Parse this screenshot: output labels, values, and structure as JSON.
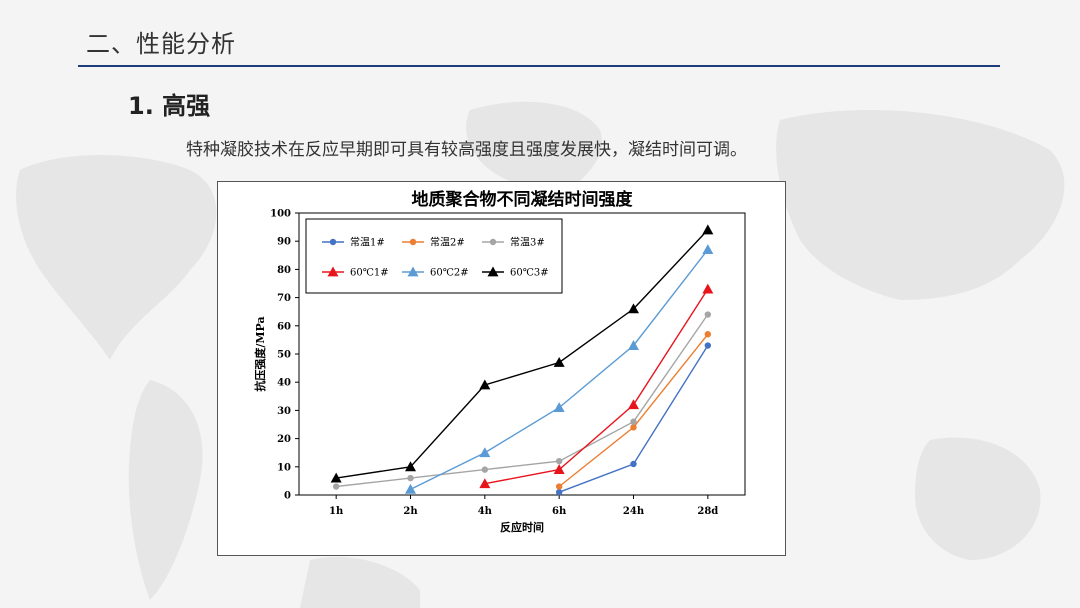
{
  "header": {
    "section_title": "二、性能分析",
    "subtitle": "1. 高强",
    "description": "特种凝胶技术在反应早期即可具有较高强度且强度发展快，凝结时间可调。"
  },
  "colors": {
    "accent_rule": "#1f3d7a"
  },
  "chart_data": {
    "type": "line",
    "title": "地质聚合物不同凝结时间强度",
    "xlabel": "反应时间",
    "ylabel": "抗压强度/MPa",
    "categories": [
      "1h",
      "2h",
      "4h",
      "6h",
      "24h",
      "28d"
    ],
    "ylim": [
      0,
      100
    ],
    "yticks": [
      0,
      10,
      20,
      30,
      40,
      50,
      60,
      70,
      80,
      90,
      100
    ],
    "grid": false,
    "legend_position": "top-left",
    "series": [
      {
        "name": "常温1#",
        "color": "#4472c4",
        "marker": "circle",
        "values": [
          null,
          null,
          null,
          1,
          11,
          53
        ]
      },
      {
        "name": "常温2#",
        "color": "#ed7d31",
        "marker": "circle",
        "values": [
          null,
          null,
          null,
          3,
          24,
          57
        ]
      },
      {
        "name": "常温3#",
        "color": "#a5a5a5",
        "marker": "circle",
        "values": [
          3,
          6,
          9,
          12,
          26,
          64
        ]
      },
      {
        "name": "60℃1#",
        "color": "#e8141c",
        "marker": "triangle",
        "values": [
          null,
          null,
          4,
          9,
          32,
          73
        ]
      },
      {
        "name": "60℃2#",
        "color": "#5b9bd5",
        "marker": "triangle",
        "values": [
          null,
          2,
          15,
          31,
          53,
          87
        ]
      },
      {
        "name": "60℃3#",
        "color": "#000000",
        "marker": "triangle",
        "values": [
          6,
          10,
          39,
          47,
          66,
          94
        ]
      }
    ]
  }
}
